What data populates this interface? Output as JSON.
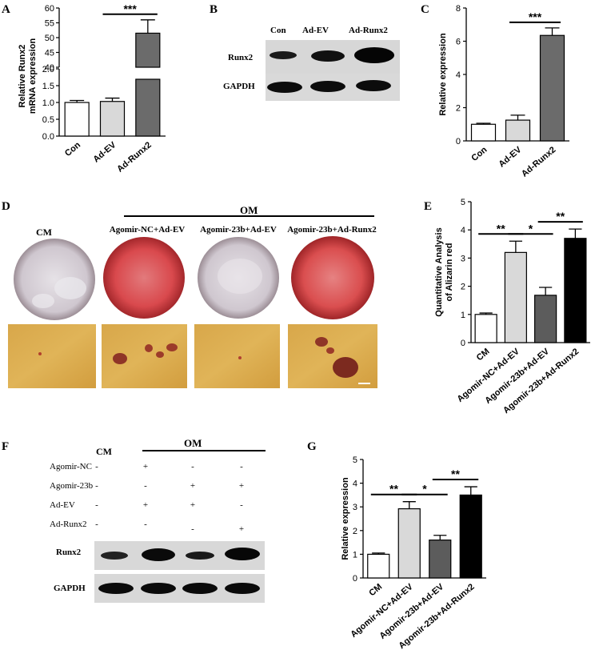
{
  "panels": {
    "A": "A",
    "B": "B",
    "C": "C",
    "D": "D",
    "E": "E",
    "F": "F",
    "G": "G"
  },
  "chart_data": [
    {
      "id": "A",
      "type": "bar",
      "categories": [
        "Con",
        "Ad-EV",
        "Ad-Runx2"
      ],
      "values": [
        1.0,
        1.03,
        51.5
      ],
      "errors": [
        0.06,
        0.1,
        4.5
      ],
      "colors": [
        "#ffffff",
        "#d9d9d9",
        "#6b6b6b"
      ],
      "ylabel": [
        "Relative Runx2",
        "mRNA expression"
      ],
      "axis_break": true,
      "lower_ylim": [
        0,
        2.0
      ],
      "lower_ticks": [
        "0.0",
        "0.5",
        "1.0",
        "1.5",
        "2.0"
      ],
      "upper_ylim": [
        40,
        60
      ],
      "upper_ticks": [
        "40",
        "45",
        "50",
        "55",
        "60"
      ],
      "significance": [
        {
          "from": 1,
          "to": 2,
          "label": "***"
        }
      ]
    },
    {
      "id": "C",
      "type": "bar",
      "categories": [
        "Con",
        "Ad-EV",
        "Ad-Runx2"
      ],
      "values": [
        1.0,
        1.25,
        6.35
      ],
      "errors": [
        0.06,
        0.3,
        0.45
      ],
      "colors": [
        "#ffffff",
        "#d9d9d9",
        "#6b6b6b"
      ],
      "ylabel": "Relative expression",
      "ylim": [
        0,
        8
      ],
      "ticks": [
        "0",
        "2",
        "4",
        "6",
        "8"
      ],
      "significance": [
        {
          "from": 1,
          "to": 2,
          "label": "***"
        }
      ]
    },
    {
      "id": "E",
      "type": "bar",
      "categories": [
        "CM",
        "Agomir-NC+Ad-EV",
        "Agomir-23b+Ad-EV",
        "Agomir-23b+Ad-Runx2"
      ],
      "values": [
        1.0,
        3.2,
        1.68,
        3.7
      ],
      "errors": [
        0.05,
        0.4,
        0.28,
        0.33
      ],
      "colors": [
        "#ffffff",
        "#d9d9d9",
        "#5c5c5c",
        "#000000"
      ],
      "ylabel": [
        "Quantitative Analysis",
        "of Alizarin red"
      ],
      "ylim": [
        0,
        5
      ],
      "ticks": [
        "0",
        "1",
        "2",
        "3",
        "4",
        "5"
      ],
      "significance": [
        {
          "from": 0,
          "to": 1,
          "label": "**"
        },
        {
          "from": 1,
          "to": 2,
          "label": "*"
        },
        {
          "from": 2,
          "to": 3,
          "label": "**"
        }
      ]
    },
    {
      "id": "G",
      "type": "bar",
      "categories": [
        "CM",
        "Agomir-NC+Ad-EV",
        "Agomir-23b+Ad-EV",
        "Agomir-23b+Ad-Runx2"
      ],
      "values": [
        1.0,
        2.92,
        1.6,
        3.5
      ],
      "errors": [
        0.05,
        0.3,
        0.2,
        0.35
      ],
      "colors": [
        "#ffffff",
        "#d9d9d9",
        "#5c5c5c",
        "#000000"
      ],
      "ylabel": "Relative expression",
      "ylim": [
        0,
        5
      ],
      "ticks": [
        "0",
        "1",
        "2",
        "3",
        "4",
        "5"
      ],
      "significance": [
        {
          "from": 0,
          "to": 1,
          "label": "**"
        },
        {
          "from": 1,
          "to": 2,
          "label": "*"
        },
        {
          "from": 2,
          "to": 3,
          "label": "**"
        }
      ]
    }
  ],
  "blot_B": {
    "lanes": [
      "Con",
      "Ad-EV",
      "Ad-Runx2"
    ],
    "rows": [
      "Runx2",
      "GAPDH"
    ]
  },
  "stain_D": {
    "groups": [
      "CM",
      "Agomir-NC+Ad-EV",
      "Agomir-23b+Ad-EV",
      "Agomir-23b+Ad-Runx2"
    ],
    "om_label": "OM"
  },
  "blot_F": {
    "cm_label": "CM",
    "om_label": "OM",
    "treatments": [
      {
        "name": "Agomir-NC",
        "marks": [
          "-",
          "+",
          "-",
          "-"
        ]
      },
      {
        "name": "Agomir-23b",
        "marks": [
          "-",
          "-",
          "+",
          "+"
        ]
      },
      {
        "name": "Ad-EV",
        "marks": [
          "-",
          "+",
          "+",
          "-"
        ]
      },
      {
        "name": "Ad-Runx2",
        "marks": [
          "-",
          "-",
          "-",
          "+"
        ]
      }
    ],
    "rows": [
      "Runx2",
      "GAPDH"
    ]
  }
}
